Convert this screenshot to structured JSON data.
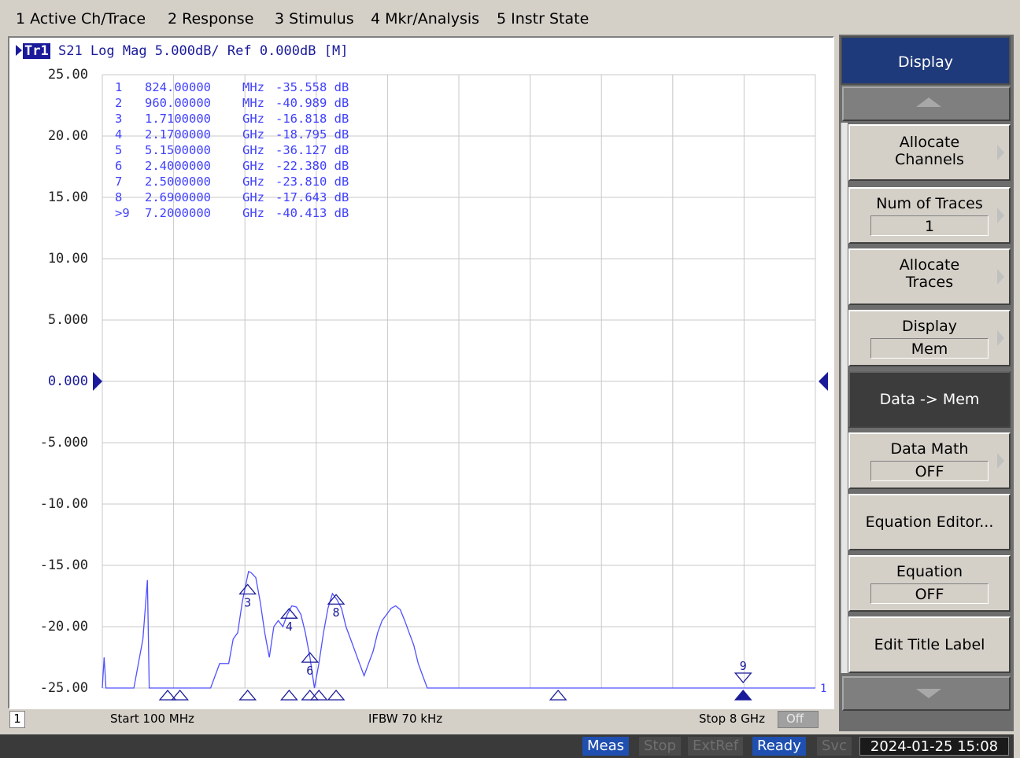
{
  "menu": [
    {
      "label": "1 Active Ch/Trace"
    },
    {
      "label": "2 Response"
    },
    {
      "label": "3 Stimulus"
    },
    {
      "label": "4 Mkr/Analysis"
    },
    {
      "label": "5 Instr State"
    }
  ],
  "trace": {
    "badge": "Tr1",
    "info": "S21 Log Mag 5.000dB/ Ref 0.000dB [M]",
    "ref_value": "0.000"
  },
  "y_axis_labels": [
    "25.00",
    "20.00",
    "15.00",
    "10.00",
    "5.000",
    "0.000",
    "-5.000",
    "-10.00",
    "-15.00",
    "-20.00",
    "-25.00"
  ],
  "markers": [
    {
      "num": "1",
      "freq": "824.00000",
      "unit": "MHz",
      "value": "-35.558 dB"
    },
    {
      "num": "2",
      "freq": "960.00000",
      "unit": "MHz",
      "value": "-40.989 dB"
    },
    {
      "num": "3",
      "freq": "1.7100000",
      "unit": "GHz",
      "value": "-16.818 dB"
    },
    {
      "num": "4",
      "freq": "2.1700000",
      "unit": "GHz",
      "value": "-18.795 dB"
    },
    {
      "num": "5",
      "freq": "5.1500000",
      "unit": "GHz",
      "value": "-36.127 dB"
    },
    {
      "num": "6",
      "freq": "2.4000000",
      "unit": "GHz",
      "value": "-22.380 dB"
    },
    {
      "num": "7",
      "freq": "2.5000000",
      "unit": "GHz",
      "value": "-23.810 dB"
    },
    {
      "num": "8",
      "freq": "2.6900000",
      "unit": "GHz",
      "value": "-17.643 dB"
    },
    {
      "num": ">9",
      "freq": "7.2000000",
      "unit": "GHz",
      "value": "-40.413 dB"
    }
  ],
  "marker_labels": {
    "m3": "3",
    "m4": "4",
    "m6": "6",
    "m8": "8",
    "m9": "9",
    "ch_end": "1"
  },
  "status": {
    "channel": "1",
    "start": "Start 100 MHz",
    "ifbw": "IFBW 70 kHz",
    "stop": "Stop 8 GHz",
    "off": "Off"
  },
  "taskbar": {
    "meas": "Meas",
    "stop": "Stop",
    "extref": "ExtRef",
    "ready": "Ready",
    "svc": "Svc",
    "datetime": "2024-01-25 15:08"
  },
  "softkeys": {
    "title": "Display",
    "allocate_channels": [
      "Allocate",
      "Channels"
    ],
    "num_traces": {
      "label": "Num of Traces",
      "value": "1"
    },
    "allocate_traces": [
      "Allocate",
      "Traces"
    ],
    "display": {
      "label": "Display",
      "value": "Mem"
    },
    "data_mem": "Data -> Mem",
    "data_math": {
      "label": "Data Math",
      "value": "OFF"
    },
    "equation_editor": "Equation Editor...",
    "equation": {
      "label": "Equation",
      "value": "OFF"
    },
    "edit_title": "Edit Title Label"
  },
  "chart_data": {
    "type": "line",
    "x_start_ghz": 0.1,
    "x_stop_ghz": 8.0,
    "ylim": [
      -25,
      25
    ],
    "y_divisions": 10,
    "x_divisions": 10,
    "grid": true,
    "series": [
      {
        "values_x_ghz": [
          0.1,
          0.12,
          0.14,
          0.16,
          0.2,
          0.3,
          0.45,
          0.55,
          0.6,
          0.62,
          0.64,
          0.7,
          0.8,
          0.9,
          1.0,
          1.1,
          1.2,
          1.3,
          1.4,
          1.5,
          1.55,
          1.6,
          1.65,
          1.7,
          1.72,
          1.75,
          1.8,
          1.85,
          1.9,
          1.95,
          2.0,
          2.05,
          2.1,
          2.15,
          2.2,
          2.25,
          2.3,
          2.35,
          2.4,
          2.45,
          2.5,
          2.55,
          2.6,
          2.65,
          2.7,
          2.75,
          2.8,
          2.85,
          2.9,
          2.95,
          3.0,
          3.05,
          3.1,
          3.15,
          3.2,
          3.25,
          3.3,
          3.35,
          3.4,
          3.45,
          3.5,
          3.55,
          3.6,
          3.65,
          3.7,
          3.8,
          4.0,
          5.0,
          6.0,
          7.0,
          8.0
        ],
        "values_db": [
          -25,
          -22.5,
          -25,
          -25,
          -25,
          -25,
          -25,
          -21,
          -16.2,
          -25,
          -25,
          -25,
          -25,
          -25,
          -25,
          -25,
          -25,
          -25,
          -23,
          -23,
          -21,
          -20.5,
          -18,
          -16.2,
          -15.5,
          -15.6,
          -16,
          -18,
          -20.5,
          -22.5,
          -20,
          -19.5,
          -20,
          -19,
          -18.3,
          -18.4,
          -19,
          -20.5,
          -22.5,
          -25,
          -23,
          -20.5,
          -18.5,
          -17.3,
          -17.8,
          -18.5,
          -20,
          -21,
          -22,
          -23,
          -24,
          -23,
          -22,
          -20.5,
          -19.5,
          -19,
          -18.5,
          -18.3,
          -18.6,
          -19.5,
          -20.5,
          -21.5,
          -23,
          -24,
          -25,
          -25,
          -25,
          -25,
          -25,
          -25,
          -25
        ]
      }
    ]
  }
}
